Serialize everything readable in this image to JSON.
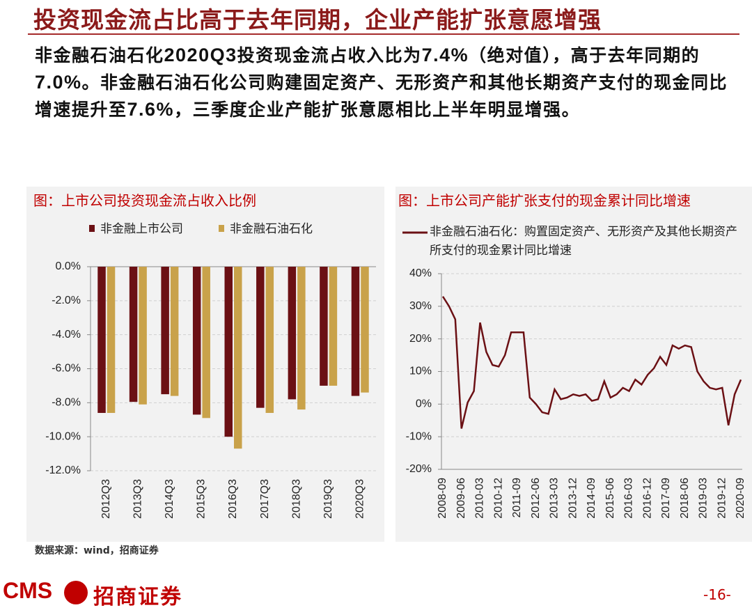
{
  "header": {
    "title": "投资现金流占比高于去年同期，企业产能扩张意愿增强",
    "paragraph": [
      "非金融石油石化",
      "2020Q3",
      "投资现金流占收入比为",
      "7.4%",
      "（绝对值），高于去年同期的",
      "7.0%",
      "。非金融石油石化公司购建固定资产、无形资产和其他长期资产支付的现金同比增速提升至",
      "7.6%",
      "，三季度企业产能扩张意愿相比上半年明显增强。"
    ]
  },
  "chart_data": [
    {
      "type": "bar",
      "title": "图：上市公司投资现金流占收入比例",
      "categories": [
        "2012Q3",
        "2013Q3",
        "2014Q3",
        "2015Q3",
        "2016Q3",
        "2017Q3",
        "2018Q3",
        "2019Q3",
        "2020Q3"
      ],
      "series": [
        {
          "name": "非金融上市公司",
          "color": "#6b1014",
          "values": [
            -8.6,
            -7.95,
            -7.5,
            -8.7,
            -10.0,
            -8.3,
            -7.8,
            -7.0,
            -7.6
          ]
        },
        {
          "name": "非金融石油石化",
          "color": "#c9a24a",
          "values": [
            -8.6,
            -8.1,
            -7.6,
            -8.9,
            -10.7,
            -8.6,
            -8.4,
            -7.0,
            -7.4
          ]
        }
      ],
      "ylim": [
        -12,
        0
      ],
      "yticks": [
        {
          "value": 0,
          "label": "0.0%"
        },
        {
          "value": -2,
          "label": "-2.0%"
        },
        {
          "value": -4,
          "label": "-4.0%"
        },
        {
          "value": -6,
          "label": "-6.0%"
        },
        {
          "value": -8,
          "label": "-8.0%"
        },
        {
          "value": -10,
          "label": "-10.0%"
        },
        {
          "value": -12,
          "label": "-12.0%"
        }
      ],
      "grid": true
    },
    {
      "type": "line",
      "title": "图：上市公司产能扩张支付的现金累计同比增速",
      "categories": [
        "2008-09",
        null,
        null,
        "2009-06",
        null,
        null,
        "2010-03",
        null,
        null,
        "2010-12",
        null,
        null,
        "2011-09",
        null,
        null,
        "2012-06",
        null,
        null,
        "2013-03",
        null,
        null,
        "2013-12",
        null,
        null,
        "2014-09",
        null,
        null,
        "2015-06",
        null,
        null,
        "2016-03",
        null,
        null,
        "2016-12",
        null,
        null,
        "2017-09",
        null,
        null,
        "2018-06",
        null,
        null,
        "2019-03",
        null,
        null,
        "2019-12",
        null,
        null,
        "2020-09"
      ],
      "series": [
        {
          "name": "非金融石油石化：购置固定资产、无形资产及其他长期资产所支付的现金累计同比增速",
          "color": "#6b1014",
          "values": [
            33,
            30,
            26,
            -7.5,
            0.5,
            4,
            25,
            16,
            12,
            11.5,
            15,
            22,
            22,
            22,
            2,
            0,
            -2.5,
            -3,
            4.5,
            1.5,
            2,
            3,
            2.5,
            3,
            1,
            1.5,
            7,
            2,
            3,
            5,
            4,
            7.5,
            6,
            9,
            11,
            14.5,
            12,
            18,
            17,
            18,
            17.5,
            10,
            7,
            5,
            4.5,
            5,
            -6.5,
            3,
            7.5
          ]
        }
      ],
      "ylim": [
        -20,
        40
      ],
      "yticks": [
        {
          "value": 40,
          "label": "40%"
        },
        {
          "value": 30,
          "label": "30%"
        },
        {
          "value": 20,
          "label": "20%"
        },
        {
          "value": 10,
          "label": "10%"
        },
        {
          "value": 0,
          "label": "0%"
        },
        {
          "value": -10,
          "label": "-10%"
        },
        {
          "value": -20,
          "label": "-20%"
        }
      ],
      "grid": true
    }
  ],
  "footer": {
    "source": "数据来源：wind，招商证券",
    "logo": "CMS",
    "company": "招商证券",
    "page": "-16-"
  }
}
